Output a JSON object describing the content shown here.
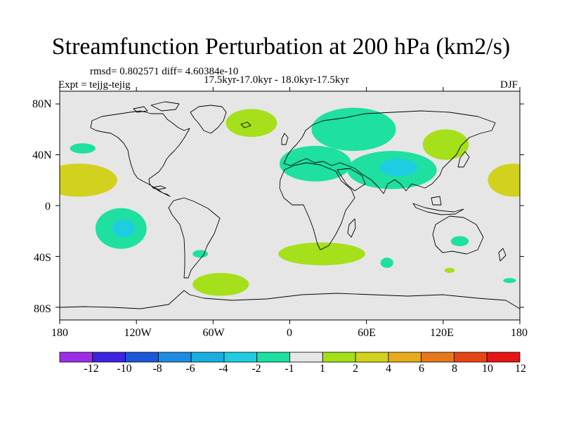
{
  "title": "Streamfunction Perturbation at 200 hPa (km2/s)",
  "stats_text": "rmsd= 0.802571 diff= 4.60384e-10",
  "period_text": "17.5kyr-17.0kyr - 18.0kyr-17.5kyr",
  "expt_text": "Expt = tejjg-tejig",
  "season": "DJF",
  "axes": {
    "lat_ticks": [
      "80N",
      "40N",
      "0",
      "40S",
      "80S"
    ],
    "lon_ticks": [
      "180",
      "120W",
      "60W",
      "0",
      "60E",
      "120E",
      "180"
    ]
  },
  "colorbar": {
    "labels": [
      "-12",
      "-10",
      "-8",
      "-6",
      "-4",
      "-2",
      "-1",
      "1",
      "2",
      "4",
      "6",
      "8",
      "10",
      "12"
    ],
    "colors": [
      "#9b2ee6",
      "#3c23e0",
      "#1b58d8",
      "#1e8ce0",
      "#19aee0",
      "#1ecee0",
      "#1ee0a0",
      "#e6e6e6",
      "#a5e01a",
      "#d2d21e",
      "#e6aa1a",
      "#e6781a",
      "#e64614",
      "#e61414"
    ]
  },
  "chart_data": {
    "type": "map",
    "projection": "cylindrical equidistant",
    "lon_range": [
      -180,
      180
    ],
    "lat_range": [
      -90,
      90
    ],
    "field_regions": [
      {
        "name": "north-pacific-east-positive",
        "lon": -165,
        "lat": 20,
        "rlon": 30,
        "rlat": 13,
        "level": "4"
      },
      {
        "name": "north-pacific-east-positive-inner",
        "lon": -165,
        "lat": 20,
        "rlon": 18,
        "rlat": 8,
        "level": "4"
      },
      {
        "name": "north-pacific-west-positive",
        "lon": 175,
        "lat": 20,
        "rlon": 20,
        "rlat": 13,
        "level": "4"
      },
      {
        "name": "hawaii-negative-small",
        "lon": -162,
        "lat": 45,
        "rlon": 10,
        "rlat": 4,
        "level": "-1"
      },
      {
        "name": "south-pacific-negative",
        "lon": -132,
        "lat": -18,
        "rlon": 20,
        "rlat": 16,
        "level": "-1"
      },
      {
        "name": "south-pacific-negative-core",
        "lon": -130,
        "lat": -18,
        "rlon": 9,
        "rlat": 7,
        "level": "-2"
      },
      {
        "name": "greenland-positive",
        "lon": -30,
        "lat": 65,
        "rlon": 20,
        "rlat": 11,
        "level": "2"
      },
      {
        "name": "europe-north-negative",
        "lon": 50,
        "lat": 60,
        "rlon": 33,
        "rlat": 17,
        "level": "-1"
      },
      {
        "name": "east-asia-positive",
        "lon": 122,
        "lat": 48,
        "rlon": 18,
        "rlat": 12,
        "level": "2"
      },
      {
        "name": "north-africa-negative",
        "lon": 20,
        "lat": 33,
        "rlon": 28,
        "rlat": 14,
        "level": "-1"
      },
      {
        "name": "south-asia-negative",
        "lon": 80,
        "lat": 28,
        "rlon": 35,
        "rlat": 15,
        "level": "-1"
      },
      {
        "name": "south-asia-negative-core",
        "lon": 85,
        "lat": 30,
        "rlon": 15,
        "rlat": 7,
        "level": "-2"
      },
      {
        "name": "south-atlantic-positive",
        "lon": 25,
        "lat": -38,
        "rlon": 34,
        "rlat": 9,
        "level": "2"
      },
      {
        "name": "indian-ocean-negative-1",
        "lon": 76,
        "lat": -45,
        "rlon": 5,
        "rlat": 4,
        "level": "-1"
      },
      {
        "name": "indian-ocean-negative-2",
        "lon": 133,
        "lat": -28,
        "rlon": 7,
        "rlat": 4,
        "level": "-1"
      },
      {
        "name": "south-australia-positive",
        "lon": 125,
        "lat": -51,
        "rlon": 4,
        "rlat": 2,
        "level": "2"
      },
      {
        "name": "tasman-negative",
        "lon": 172,
        "lat": -59,
        "rlon": 5,
        "rlat": 2,
        "level": "-1"
      },
      {
        "name": "patagonia-negative",
        "lon": -70,
        "lat": -38,
        "rlon": 6,
        "rlat": 3,
        "level": "-1"
      },
      {
        "name": "drake-positive",
        "lon": -54,
        "lat": -62,
        "rlon": 22,
        "rlat": 9,
        "level": "2"
      }
    ]
  }
}
